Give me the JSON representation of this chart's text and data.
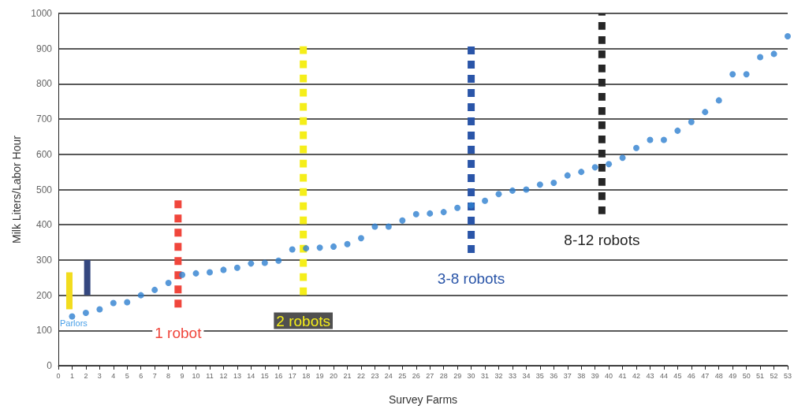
{
  "chart_data": {
    "type": "scatter",
    "xlabel": "Survey Farms",
    "ylabel": "Milk Liters/Labor Hour",
    "xlim": [
      0,
      53
    ],
    "xticks": [
      0,
      1,
      2,
      3,
      4,
      5,
      6,
      7,
      8,
      9,
      10,
      11,
      12,
      13,
      14,
      15,
      16,
      17,
      18,
      19,
      20,
      21,
      22,
      23,
      24,
      25,
      26,
      27,
      28,
      29,
      30,
      31,
      32,
      33,
      34,
      35,
      36,
      37,
      38,
      39,
      40,
      41,
      42,
      43,
      44,
      45,
      46,
      47,
      48,
      49,
      50,
      51,
      52,
      53
    ],
    "ylim": [
      0,
      1000
    ],
    "yticks": [
      0,
      100,
      200,
      300,
      400,
      500,
      600,
      700,
      800,
      900,
      1000
    ],
    "grid": "y",
    "legend": false,
    "marker": "circle",
    "annotations": [
      "Parlors"
    ],
    "series": [
      {
        "color": "#2e7fd0",
        "x": [
          1,
          2,
          3,
          4,
          5,
          6,
          7,
          8,
          9,
          10,
          11,
          12,
          13,
          14,
          15,
          16,
          17,
          18,
          19,
          20,
          21,
          22,
          23,
          24,
          25,
          26,
          27,
          28,
          29,
          30,
          31,
          32,
          33,
          34,
          35,
          36,
          37,
          38,
          39,
          40,
          41,
          42,
          43,
          44,
          45,
          46,
          47,
          48,
          49,
          50,
          51,
          52,
          53
        ],
        "values": [
          140,
          150,
          160,
          178,
          180,
          200,
          215,
          235,
          258,
          262,
          265,
          272,
          278,
          290,
          292,
          298,
          330,
          333,
          335,
          338,
          345,
          362,
          395,
          395,
          412,
          430,
          432,
          436,
          448,
          455,
          468,
          487,
          497,
          500,
          514,
          519,
          540,
          550,
          563,
          572,
          590,
          618,
          641,
          641,
          667,
          692,
          720,
          753,
          827,
          827,
          876,
          885,
          935
        ]
      },
      {
        "type": "line",
        "color": "#f2dc1e",
        "line_style": "solid",
        "marker": "none",
        "x": [
          0.8,
          0.8
        ],
        "values": [
          160,
          265
        ]
      },
      {
        "type": "line",
        "color": "#34477f",
        "line_style": "solid",
        "marker": "none",
        "x": [
          2.1,
          2.1
        ],
        "values": [
          200,
          300
        ]
      },
      {
        "type": "line",
        "name": "1 robot",
        "color": "#f0463c",
        "line_style": "dashed",
        "marker": "none",
        "x": [
          8.7,
          8.7
        ],
        "values": [
          165,
          485
        ]
      },
      {
        "type": "line",
        "name": "2 robots",
        "color": "#f5ee1a",
        "line_style": "dashed",
        "marker": "none",
        "x": [
          17.8,
          17.8
        ],
        "values": [
          200,
          920
        ]
      },
      {
        "type": "line",
        "name": "3-8 robots",
        "color": "#2a55a8",
        "line_style": "dashed",
        "marker": "none",
        "x": [
          30,
          30
        ],
        "values": [
          320,
          910
        ]
      },
      {
        "type": "line",
        "name": "8-12 robots",
        "color": "#262626",
        "line_style": "dashed",
        "marker": "none",
        "x": [
          39.5,
          39.5
        ],
        "values": [
          430,
          1000
        ]
      }
    ]
  }
}
